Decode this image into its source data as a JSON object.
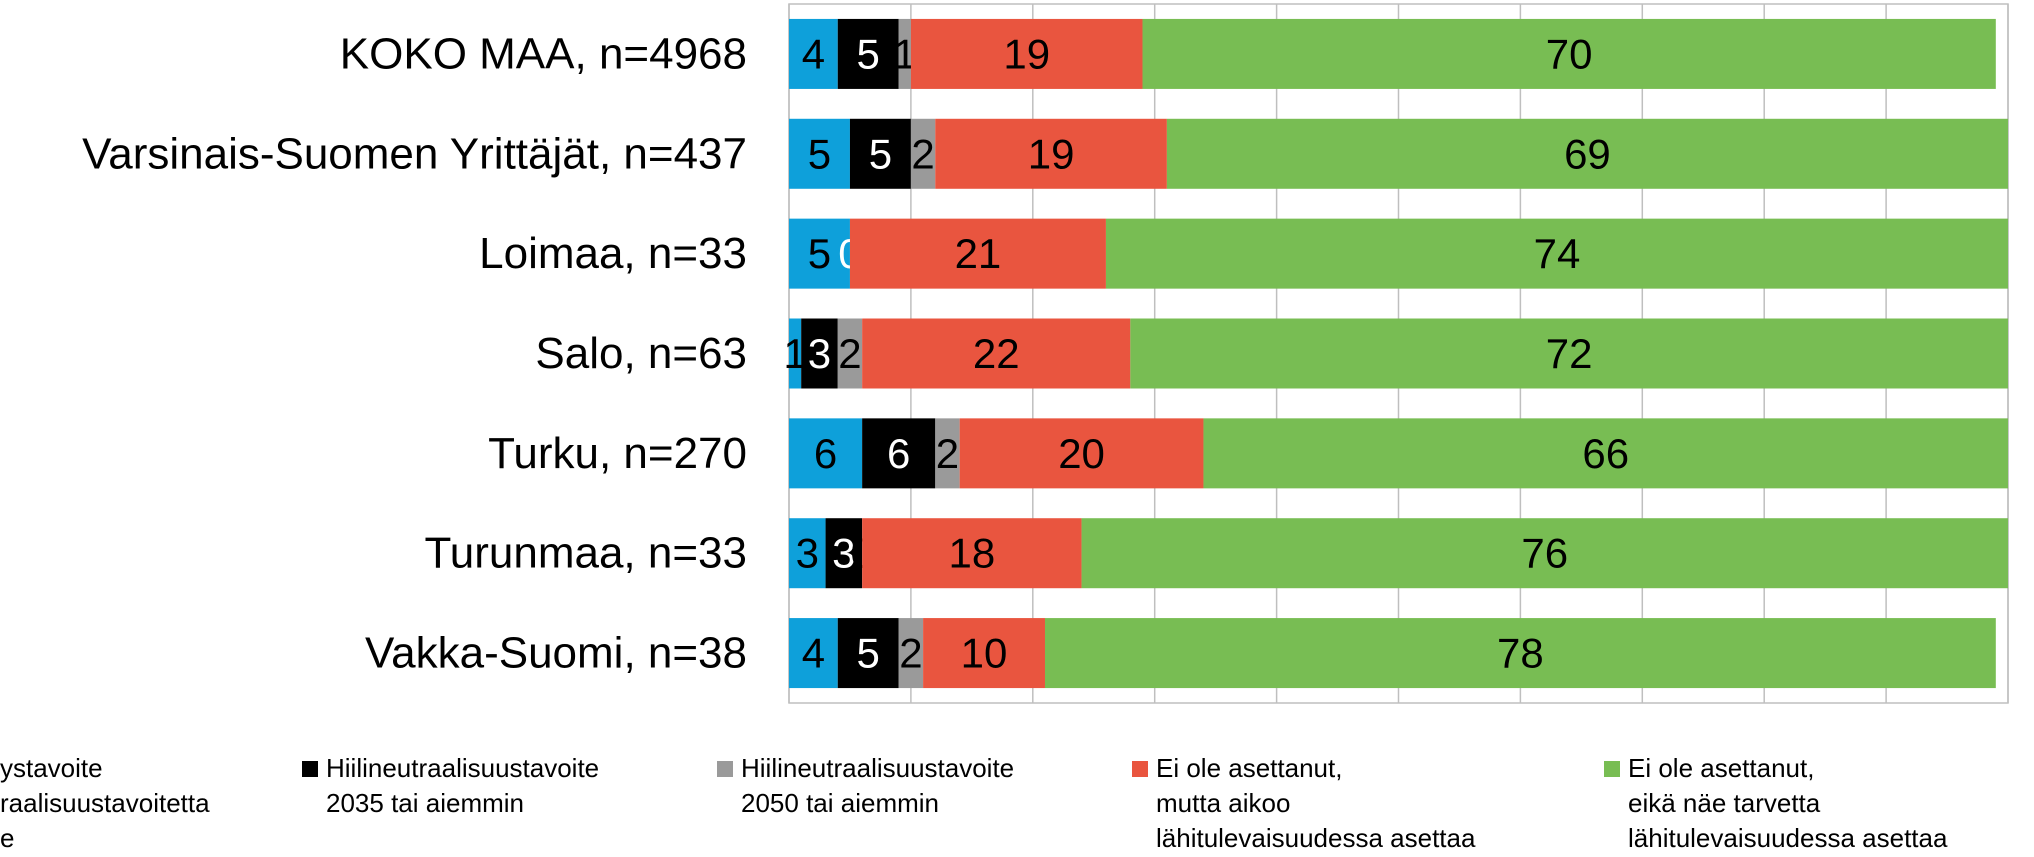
{
  "chart_data": {
    "type": "stacked_barh",
    "categories": [
      "KOKO MAA, n=4968",
      "Varsinais-Suomen Yrittäjät, n=437",
      "Loimaa, n=33",
      "Salo, n=63",
      "Turku, n=270",
      "Turunmaa, n=33",
      "Vakka-Suomi, n=38"
    ],
    "series": [
      {
        "name": "ystavoite\nraalisuustavoitetta\ne",
        "color": "#0ea0da",
        "label_color": "#000000",
        "values": [
          4,
          5,
          5,
          1,
          6,
          3,
          4
        ]
      },
      {
        "name": "Hiilineutraalisuustavoite\n2035 tai aiemmin",
        "color": "#000000",
        "label_color": "#ffffff",
        "values": [
          5,
          5,
          0,
          3,
          6,
          3,
          5
        ]
      },
      {
        "name": "Hiilineutraalisuustavoite\n2050 tai aiemmin",
        "color": "#9a9a9a",
        "label_color": "#000000",
        "values": [
          1,
          2,
          null,
          2,
          2,
          0,
          2
        ]
      },
      {
        "name": "Ei ole asettanut,\nmutta aikoo\nlähitulevaisuudessa asettaa",
        "color": "#e9553f",
        "label_color": "#000000",
        "values": [
          19,
          19,
          21,
          22,
          20,
          18,
          10
        ]
      },
      {
        "name": "Ei ole asettanut,\neikä näe tarvetta\nlähitulevaisuudessa asettaa",
        "color": "#78bd53",
        "label_color": "#000000",
        "values": [
          70,
          69,
          74,
          72,
          66,
          76,
          78
        ]
      }
    ],
    "xlim": [
      0,
      100
    ],
    "xticks": [
      0,
      10,
      20,
      30,
      40,
      50,
      60,
      70,
      80,
      90,
      100
    ],
    "grid": true
  }
}
